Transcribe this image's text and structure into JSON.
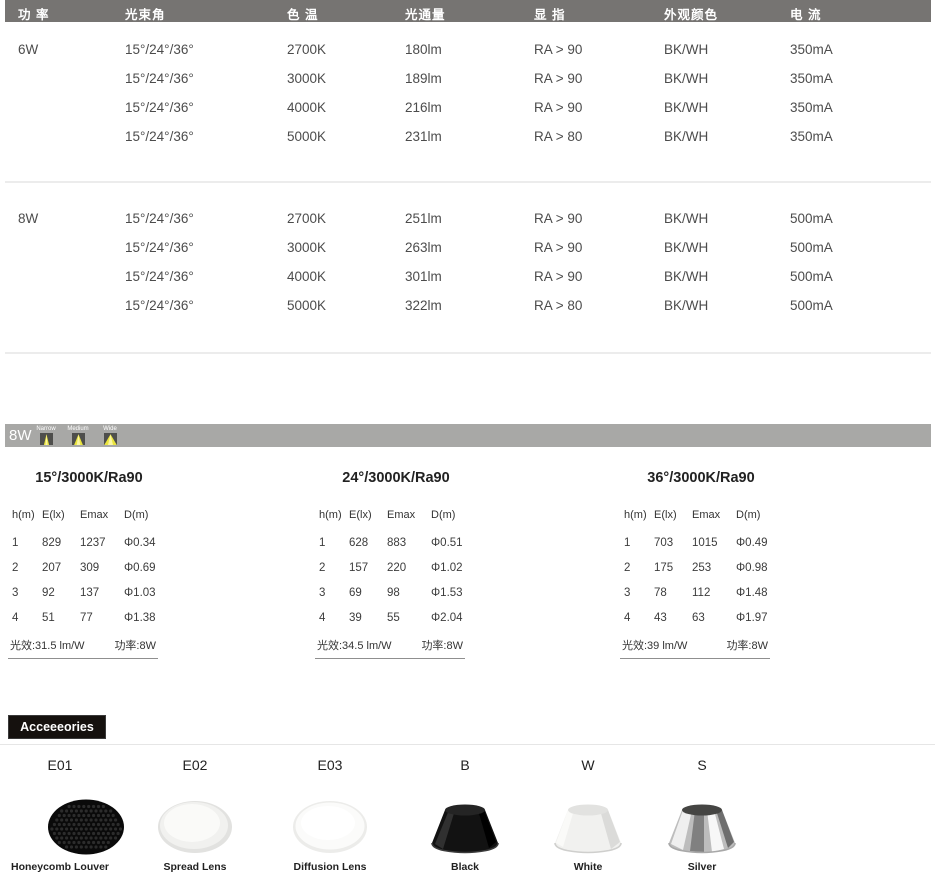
{
  "spec_table": {
    "headers": [
      "功 率",
      "光束角",
      "色 温",
      "光通量",
      "显 指",
      "外观颜色",
      "电 流"
    ],
    "groups": [
      {
        "power": "6W",
        "rows": [
          [
            "15°/24°/36°",
            "2700K",
            "180lm",
            "RA > 90",
            "BK/WH",
            "350mA"
          ],
          [
            "15°/24°/36°",
            "3000K",
            "189lm",
            "RA > 90",
            "BK/WH",
            "350mA"
          ],
          [
            "15°/24°/36°",
            "4000K",
            "216lm",
            "RA > 90",
            "BK/WH",
            "350mA"
          ],
          [
            "15°/24°/36°",
            "5000K",
            "231lm",
            "RA > 80",
            "BK/WH",
            "350mA"
          ]
        ]
      },
      {
        "power": "8W",
        "rows": [
          [
            "15°/24°/36°",
            "2700K",
            "251lm",
            "RA > 90",
            "BK/WH",
            "500mA"
          ],
          [
            "15°/24°/36°",
            "3000K",
            "263lm",
            "RA > 90",
            "BK/WH",
            "500mA"
          ],
          [
            "15°/24°/36°",
            "4000K",
            "301lm",
            "RA > 90",
            "BK/WH",
            "500mA"
          ],
          [
            "15°/24°/36°",
            "5000K",
            "322lm",
            "RA > 80",
            "BK/WH",
            "500mA"
          ]
        ]
      }
    ]
  },
  "beam_banner": {
    "label": "8W",
    "beam_icons": [
      {
        "label": "Narrow"
      },
      {
        "label": "Medium"
      },
      {
        "label": "Wide"
      }
    ]
  },
  "photometric_tables": [
    {
      "title": "15°/3000K/Ra90",
      "columns": [
        "h(m)",
        "E(lx)",
        "Emax",
        "D(m)"
      ],
      "rows": [
        [
          "1",
          "829",
          "1237",
          "Φ0.34"
        ],
        [
          "2",
          "207",
          "309",
          "Φ0.69"
        ],
        [
          "3",
          "92",
          "137",
          "Φ1.03"
        ],
        [
          "4",
          "51",
          "77",
          "Φ1.38"
        ]
      ],
      "efficacy": "光效:31.5 lm/W",
      "power": "功率:8W"
    },
    {
      "title": "24°/3000K/Ra90",
      "columns": [
        "h(m)",
        "E(lx)",
        "Emax",
        "D(m)"
      ],
      "rows": [
        [
          "1",
          "628",
          "883",
          "Φ0.51"
        ],
        [
          "2",
          "157",
          "220",
          "Φ1.02"
        ],
        [
          "3",
          "69",
          "98",
          "Φ1.53"
        ],
        [
          "4",
          "39",
          "55",
          "Φ2.04"
        ]
      ],
      "efficacy": "光效:34.5 lm/W",
      "power": "功率:8W"
    },
    {
      "title": "36°/3000K/Ra90",
      "columns": [
        "h(m)",
        "E(lx)",
        "Emax",
        "D(m)"
      ],
      "rows": [
        [
          "1",
          "703",
          "1015",
          "Φ0.49"
        ],
        [
          "2",
          "175",
          "253",
          "Φ0.98"
        ],
        [
          "3",
          "78",
          "112",
          "Φ1.48"
        ],
        [
          "4",
          "43",
          "63",
          "Φ1.97"
        ]
      ],
      "efficacy": "光效:39 lm/W",
      "power": "功率:8W"
    }
  ],
  "accessories": {
    "title": "Acceeeories",
    "items": [
      {
        "code": "E01",
        "name": "Honeycomb Louver",
        "icon": "honeycomb-louver-icon"
      },
      {
        "code": "E02",
        "name": "Spread Lens",
        "icon": "spread-lens-icon"
      },
      {
        "code": "E03",
        "name": "Diffusion Lens",
        "icon": "diffusion-lens-icon"
      },
      {
        "code": "B",
        "name": "Black",
        "icon": "black-reflector-icon"
      },
      {
        "code": "W",
        "name": "White",
        "icon": "white-reflector-icon"
      },
      {
        "code": "S",
        "name": "Silver",
        "icon": "silver-reflector-icon"
      }
    ]
  },
  "colors": {
    "header_bar": "#767472",
    "banner": "#a8a8a6",
    "beam_yellow": "#eae43e",
    "badge_black": "#15110e"
  }
}
